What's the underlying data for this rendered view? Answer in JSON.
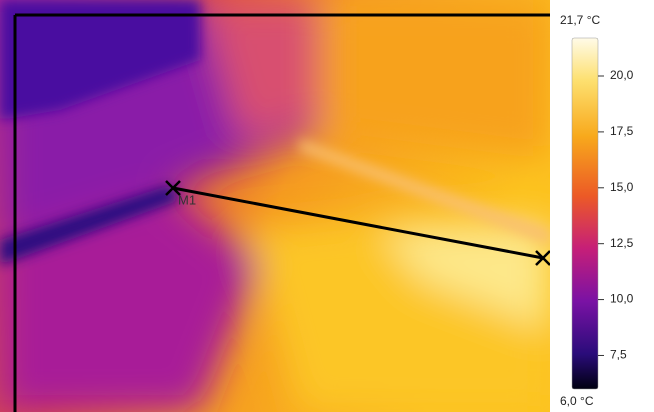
{
  "image": {
    "markers": [
      {
        "label": "M1"
      }
    ]
  },
  "scale": {
    "max": {
      "value": 21.7,
      "label": "21,7 °C"
    },
    "min": {
      "value": 6.0,
      "label": "6,0 °C"
    },
    "ticks": [
      {
        "value": 20,
        "label": "20,0"
      },
      {
        "value": 17.5,
        "label": "17,5"
      },
      {
        "value": 15,
        "label": "15,0"
      },
      {
        "value": 12.5,
        "label": "12,5"
      },
      {
        "value": 10,
        "label": "10,0"
      },
      {
        "value": 7.5,
        "label": "7,5"
      }
    ]
  }
}
